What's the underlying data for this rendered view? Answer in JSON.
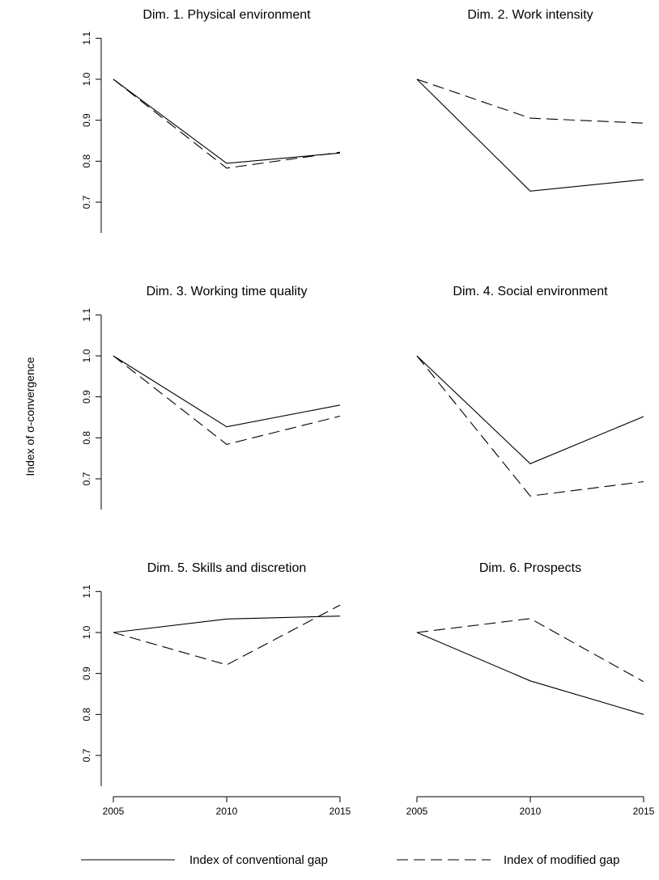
{
  "ylabel": "Index of σ-convergence",
  "legend": [
    {
      "label": "Index of conventional gap",
      "style": "solid"
    },
    {
      "label": "Index of modified gap",
      "style": "dashed"
    }
  ],
  "chart_data": [
    {
      "type": "line",
      "title": "Dim. 1. Physical environment",
      "x": [
        2005,
        2010,
        2015
      ],
      "series": [
        {
          "name": "Index of conventional gap",
          "style": "solid",
          "values": [
            1.0,
            0.795,
            0.82
          ]
        },
        {
          "name": "Index of modified gap",
          "style": "dashed",
          "values": [
            1.0,
            0.783,
            0.822
          ]
        }
      ],
      "yticks": [
        0.7,
        0.8,
        0.9,
        1.0,
        1.1
      ],
      "ylim": [
        0.63,
        1.13
      ],
      "xticks_shown": false
    },
    {
      "type": "line",
      "title": "Dim. 2. Work intensity",
      "x": [
        2005,
        2010,
        2015
      ],
      "series": [
        {
          "name": "Index of conventional gap",
          "style": "solid",
          "values": [
            1.0,
            0.727,
            0.755
          ]
        },
        {
          "name": "Index of modified gap",
          "style": "dashed",
          "values": [
            1.0,
            0.905,
            0.893
          ]
        }
      ],
      "ylim": [
        0.63,
        1.13
      ],
      "xticks_shown": false
    },
    {
      "type": "line",
      "title": "Dim. 3. Working time quality",
      "x": [
        2005,
        2010,
        2015
      ],
      "series": [
        {
          "name": "Index of conventional gap",
          "style": "solid",
          "values": [
            1.0,
            0.827,
            0.88
          ]
        },
        {
          "name": "Index of modified gap",
          "style": "dashed",
          "values": [
            1.0,
            0.784,
            0.853
          ]
        }
      ],
      "yticks": [
        0.7,
        0.8,
        0.9,
        1.0,
        1.1
      ],
      "ylim": [
        0.63,
        1.13
      ],
      "xticks_shown": false
    },
    {
      "type": "line",
      "title": "Dim. 4. Social environment",
      "x": [
        2005,
        2010,
        2015
      ],
      "series": [
        {
          "name": "Index of conventional gap",
          "style": "solid",
          "values": [
            1.0,
            0.737,
            0.852
          ]
        },
        {
          "name": "Index of modified gap",
          "style": "dashed",
          "values": [
            1.0,
            0.658,
            0.693
          ]
        }
      ],
      "ylim": [
        0.63,
        1.13
      ],
      "xticks_shown": false
    },
    {
      "type": "line",
      "title": "Dim. 5. Skills and discretion",
      "x": [
        2005,
        2010,
        2015
      ],
      "series": [
        {
          "name": "Index of conventional gap",
          "style": "solid",
          "values": [
            1.0,
            1.033,
            1.04
          ]
        },
        {
          "name": "Index of modified gap",
          "style": "dashed",
          "values": [
            1.0,
            0.921,
            1.067
          ]
        }
      ],
      "yticks": [
        0.7,
        0.8,
        0.9,
        1.0,
        1.1
      ],
      "ylim": [
        0.63,
        1.13
      ],
      "xticks": [
        2005,
        2010,
        2015
      ],
      "xticks_shown": true
    },
    {
      "type": "line",
      "title": "Dim. 6. Prospects",
      "x": [
        2005,
        2010,
        2015
      ],
      "series": [
        {
          "name": "Index of conventional gap",
          "style": "solid",
          "values": [
            1.0,
            0.882,
            0.8
          ]
        },
        {
          "name": "Index of modified gap",
          "style": "dashed",
          "values": [
            1.0,
            1.034,
            0.88
          ]
        }
      ],
      "ylim": [
        0.63,
        1.13
      ],
      "xticks": [
        2005,
        2010,
        2015
      ],
      "xticks_shown": true
    }
  ]
}
